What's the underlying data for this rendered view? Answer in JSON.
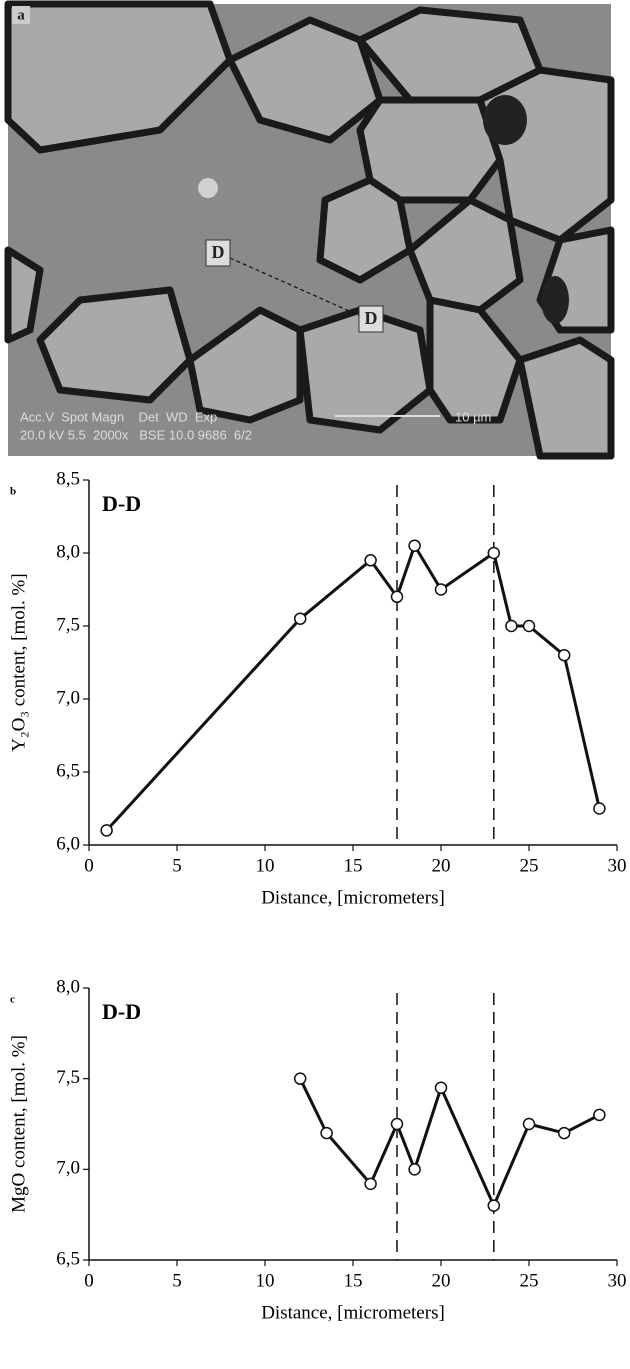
{
  "image_panel": {
    "panel_label": "a",
    "marker_1": "D",
    "marker_2": "D",
    "info_line_1": "Acc.V  Spot Magn    Det  WD  Exp",
    "info_line_2": "20.0 kV 5.5  2000x   BSE 10.0 9686  6/2",
    "scale_bar": "10 µm"
  },
  "chart_data": [
    {
      "type": "line",
      "panel_label": "b",
      "annotation": "D-D",
      "x_label": "Distance, [micrometers]",
      "y_label": "Y₂O₃ content, [mol. %]",
      "x": [
        1,
        12,
        16,
        17.5,
        18.5,
        20,
        23,
        24,
        25,
        27,
        29
      ],
      "series": [
        {
          "color": "#111111",
          "values": [
            6.1,
            7.55,
            7.95,
            7.7,
            8.05,
            7.75,
            8.0,
            7.5,
            7.5,
            7.3,
            6.25
          ]
        }
      ],
      "xlim": [
        0,
        30
      ],
      "xticks": [
        0,
        5,
        10,
        15,
        20,
        25,
        30
      ],
      "ylim": [
        6.0,
        8.5
      ],
      "yticks": [
        {
          "value": 6.0,
          "label": "6,0"
        },
        {
          "value": 6.5,
          "label": "6,5"
        },
        {
          "value": 7.0,
          "label": "7,0"
        },
        {
          "value": 7.5,
          "label": "7,5"
        },
        {
          "value": 8.0,
          "label": "8,0"
        },
        {
          "value": 8.5,
          "label": "8,5"
        }
      ],
      "vlines": [
        17.5,
        23
      ]
    },
    {
      "type": "line",
      "panel_label": "c",
      "annotation": "D-D",
      "x_label": "Distance, [micrometers]",
      "y_label": "MgO content, [mol. %]",
      "x": [
        12,
        13.5,
        16,
        17.5,
        18.5,
        20,
        23,
        25,
        27,
        29
      ],
      "series": [
        {
          "color": "#111111",
          "values": [
            7.5,
            7.2,
            6.92,
            7.25,
            7.0,
            7.45,
            6.8,
            7.25,
            7.2,
            7.3
          ]
        }
      ],
      "xlim": [
        0,
        30
      ],
      "xticks": [
        0,
        5,
        10,
        15,
        20,
        25,
        30
      ],
      "ylim": [
        6.5,
        8.0
      ],
      "yticks": [
        {
          "value": 6.5,
          "label": "6,5"
        },
        {
          "value": 7.0,
          "label": "7,0"
        },
        {
          "value": 7.5,
          "label": "7,5"
        },
        {
          "value": 8.0,
          "label": "8,0"
        }
      ],
      "vlines": [
        17.5,
        23
      ]
    }
  ]
}
